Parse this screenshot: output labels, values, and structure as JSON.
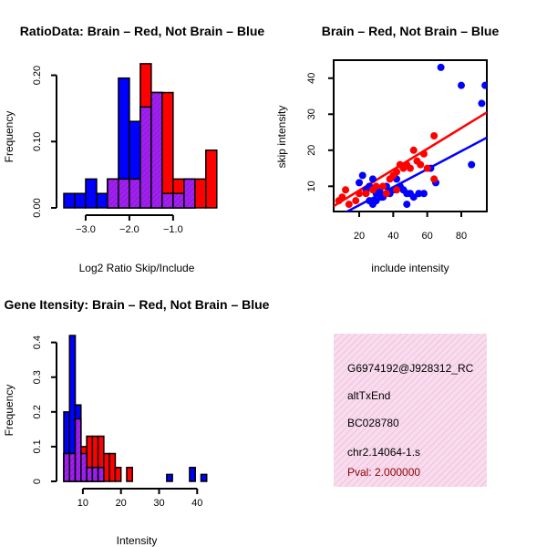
{
  "colors": {
    "brain": "#ff0000",
    "not_brain": "#0000ff",
    "overlap": "#a020f0",
    "panel_bg": "#f8dcee",
    "pval": "#8b0000"
  },
  "chart_data": [
    {
      "id": "ratio",
      "type": "bar",
      "title": "RatioData: Brain – Red, Not Brain – Blue",
      "xlabel": "Log2 Ratio Skip/Include",
      "ylabel": "Frequency",
      "xlim": [
        -3.5,
        -0.1
      ],
      "ylim": [
        0,
        0.22
      ],
      "xticks": [
        -3.0,
        -2.0,
        -1.0
      ],
      "xtick_labels": [
        "−3.0",
        "−2.0",
        "−1.0"
      ],
      "yticks": [
        0.0,
        0.1,
        0.2
      ],
      "ytick_labels": [
        "0.00",
        "0.10",
        "0.20"
      ],
      "bin_width": 0.25,
      "series": [
        {
          "name": "Not Brain",
          "bins": [
            -3.5,
            -3.25,
            -3.0,
            -2.75,
            -2.5,
            -2.25,
            -2.0,
            -1.75,
            -1.5,
            -1.25,
            -1.0,
            -0.75
          ],
          "values": [
            0.0217,
            0.0217,
            0.0435,
            0.0217,
            0.0435,
            0.1957,
            0.1304,
            0.1522,
            0.1739,
            0.0217,
            0.0217,
            0.0435
          ]
        },
        {
          "name": "Brain",
          "bins": [
            -2.5,
            -2.25,
            -2.0,
            -1.75,
            -1.5,
            -1.25,
            -1.0,
            -0.75,
            -0.5,
            -0.25
          ],
          "values": [
            0.0435,
            0.0435,
            0.0435,
            0.2174,
            0.1739,
            0.1739,
            0.0435,
            0.0435,
            0.0435,
            0.087
          ]
        }
      ]
    },
    {
      "id": "scatter",
      "type": "scatter",
      "title": "Brain – Red, Not Brain – Blue",
      "xlabel": "include intensity",
      "ylabel": "skip intensity",
      "xlim": [
        5,
        95
      ],
      "ylim": [
        3,
        45
      ],
      "xticks": [
        20,
        40,
        60,
        80
      ],
      "yticks": [
        10,
        20,
        30,
        40
      ],
      "series": [
        {
          "name": "Not Brain",
          "points": [
            [
              68,
              43
            ],
            [
              80,
              38
            ],
            [
              94,
              38
            ],
            [
              92,
              33
            ],
            [
              22,
              13
            ],
            [
              20,
              11
            ],
            [
              24,
              9
            ],
            [
              26,
              10
            ],
            [
              28,
              12
            ],
            [
              30,
              8
            ],
            [
              32,
              9
            ],
            [
              34,
              7
            ],
            [
              36,
              10
            ],
            [
              38,
              8
            ],
            [
              40,
              9
            ],
            [
              42,
              12
            ],
            [
              44,
              10
            ],
            [
              46,
              9
            ],
            [
              48,
              8
            ],
            [
              50,
              8
            ],
            [
              52,
              7
            ],
            [
              55,
              8
            ],
            [
              58,
              8
            ],
            [
              26,
              6
            ],
            [
              30,
              6
            ],
            [
              33,
              7
            ],
            [
              28,
              5
            ],
            [
              48,
              5
            ],
            [
              62,
              15
            ],
            [
              86,
              16
            ],
            [
              65,
              11
            ]
          ],
          "fit": [
            [
              5,
              1
            ],
            [
              95,
              23.5
            ]
          ]
        },
        {
          "name": "Brain",
          "points": [
            [
              8,
              6
            ],
            [
              10,
              7
            ],
            [
              12,
              9
            ],
            [
              14,
              5
            ],
            [
              18,
              6
            ],
            [
              20,
              8
            ],
            [
              24,
              8
            ],
            [
              28,
              9
            ],
            [
              30,
              10
            ],
            [
              34,
              10
            ],
            [
              38,
              12
            ],
            [
              40,
              13
            ],
            [
              42,
              14
            ],
            [
              44,
              16
            ],
            [
              46,
              15
            ],
            [
              48,
              16
            ],
            [
              50,
              15
            ],
            [
              52,
              20
            ],
            [
              54,
              17
            ],
            [
              56,
              16
            ],
            [
              58,
              19
            ],
            [
              60,
              15
            ],
            [
              64,
              24
            ],
            [
              64,
              12
            ],
            [
              36,
              8
            ],
            [
              42,
              9
            ]
          ],
          "fit": [
            [
              5,
              4.5
            ],
            [
              95,
              30.5
            ]
          ]
        }
      ]
    },
    {
      "id": "intensity",
      "type": "bar",
      "title": "Gene Itensity: Brain – Red, Not Brain – Blue",
      "xlabel": "Intensity",
      "ylabel": "Frequency",
      "xlim": [
        5,
        44
      ],
      "ylim": [
        0,
        0.42
      ],
      "xticks": [
        10,
        20,
        30,
        40
      ],
      "yticks": [
        0.0,
        0.1,
        0.2,
        0.3,
        0.4
      ],
      "bin_width": 1.5,
      "series": [
        {
          "name": "Not Brain",
          "bins": [
            5.0,
            6.5,
            8.0,
            9.5,
            11.0,
            12.5,
            14.0,
            32.0,
            38.0,
            41.0
          ],
          "values": [
            0.2,
            0.42,
            0.22,
            0.08,
            0.04,
            0.04,
            0.04,
            0.02,
            0.04,
            0.02
          ]
        },
        {
          "name": "Brain",
          "bins": [
            5.0,
            6.5,
            8.0,
            9.5,
            11.0,
            12.5,
            14.0,
            15.5,
            17.0,
            18.5,
            21.5
          ],
          "values": [
            0.08,
            0.08,
            0.18,
            0.1,
            0.13,
            0.13,
            0.13,
            0.08,
            0.08,
            0.04,
            0.04
          ]
        }
      ]
    }
  ],
  "info_panel": {
    "id": "G6974192@J928312_RC",
    "type": "altTxEnd",
    "accession": "BC028780",
    "cluster": "chr2.14064-1.s",
    "pval": "Pval: 2.000000"
  }
}
